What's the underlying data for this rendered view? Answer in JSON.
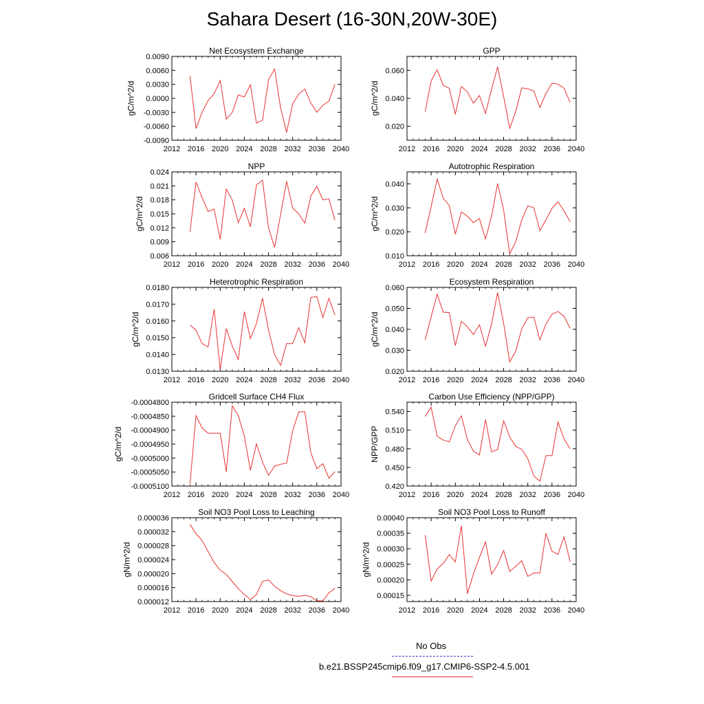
{
  "figure": {
    "title": "Sahara Desert (16-30N,20W-30E)"
  },
  "legend": {
    "obs_label": "No Obs",
    "obs_color": "#3333cc",
    "model_label": "b.e21.BSSP245cmip6.f09_g17.CMIP6-SSP2-4.5.001",
    "model_color": "#e83030"
  },
  "chart_data": [
    {
      "type": "line",
      "title": "Net Ecosystem Exchange",
      "ylabel": "gC/m^2/d",
      "xlabel": "",
      "xlim": [
        2012,
        2040
      ],
      "xticks": [
        2012,
        2016,
        2020,
        2024,
        2028,
        2032,
        2036,
        2040
      ],
      "ylim": [
        -0.009,
        0.009
      ],
      "yticks": [
        "-0.0090",
        "-0.0060",
        "-0.0030",
        "0.0000",
        "0.0030",
        "0.0060",
        "0.0090"
      ],
      "x": [
        2015,
        2016,
        2017,
        2018,
        2019,
        2020,
        2021,
        2022,
        2023,
        2024,
        2025,
        2026,
        2027,
        2028,
        2029,
        2030,
        2031,
        2032,
        2033,
        2034,
        2035,
        2036,
        2037,
        2038,
        2039
      ],
      "series": [
        {
          "color": "#e83030",
          "values": [
            0.0048,
            -0.0065,
            -0.003,
            -0.0005,
            0.001,
            0.0038,
            -0.0045,
            -0.003,
            0.0007,
            0.0003,
            0.0029,
            -0.0053,
            -0.0047,
            0.004,
            0.0063,
            -0.002,
            -0.0073,
            -0.0012,
            0.0009,
            0.002,
            -0.001,
            -0.003,
            -0.0015,
            -0.0006,
            0.003
          ]
        }
      ]
    },
    {
      "type": "line",
      "title": "GPP",
      "ylabel": "gC/m^2/d",
      "xlabel": "",
      "xlim": [
        2012,
        2040
      ],
      "xticks": [
        2012,
        2016,
        2020,
        2024,
        2028,
        2032,
        2036,
        2040
      ],
      "ylim": [
        0.01,
        0.07
      ],
      "yticks": [
        "0.020",
        "0.040",
        "0.060"
      ],
      "x": [
        2015,
        2016,
        2017,
        2018,
        2019,
        2020,
        2021,
        2022,
        2023,
        2024,
        2025,
        2026,
        2027,
        2028,
        2029,
        2030,
        2031,
        2032,
        2033,
        2034,
        2035,
        2036,
        2037,
        2038,
        2039
      ],
      "series": [
        {
          "color": "#e83030",
          "values": [
            0.0305,
            0.0525,
            0.0605,
            0.0492,
            0.0472,
            0.0285,
            0.0485,
            0.0445,
            0.0365,
            0.042,
            0.0292,
            0.0465,
            0.0625,
            0.0412,
            0.0185,
            0.0305,
            0.0475,
            0.0468,
            0.0452,
            0.0335,
            0.0435,
            0.0508,
            0.0502,
            0.0472,
            0.0372
          ]
        }
      ]
    },
    {
      "type": "line",
      "title": "NPP",
      "ylabel": "gC/m^2/d",
      "xlabel": "",
      "xlim": [
        2012,
        2040
      ],
      "xticks": [
        2012,
        2016,
        2020,
        2024,
        2028,
        2032,
        2036,
        2040
      ],
      "ylim": [
        0.006,
        0.024
      ],
      "yticks": [
        "0.006",
        "0.009",
        "0.012",
        "0.015",
        "0.018",
        "0.021",
        "0.024"
      ],
      "x": [
        2015,
        2016,
        2017,
        2018,
        2019,
        2020,
        2021,
        2022,
        2023,
        2024,
        2025,
        2026,
        2027,
        2028,
        2029,
        2030,
        2031,
        2032,
        2033,
        2034,
        2035,
        2036,
        2037,
        2038,
        2039
      ],
      "series": [
        {
          "color": "#e83030",
          "values": [
            0.0112,
            0.0218,
            0.0185,
            0.0155,
            0.016,
            0.0095,
            0.0203,
            0.0179,
            0.0131,
            0.0162,
            0.0122,
            0.0212,
            0.0222,
            0.012,
            0.0078,
            0.0148,
            0.022,
            0.0162,
            0.015,
            0.013,
            0.0188,
            0.0209,
            0.018,
            0.0182,
            0.0136
          ]
        }
      ]
    },
    {
      "type": "line",
      "title": "Autotrophic Respiration",
      "ylabel": "gC/m^2/d",
      "xlabel": "",
      "xlim": [
        2012,
        2040
      ],
      "xticks": [
        2012,
        2016,
        2020,
        2024,
        2028,
        2032,
        2036,
        2040
      ],
      "ylim": [
        0.01,
        0.045
      ],
      "yticks": [
        "0.010",
        "0.020",
        "0.030",
        "0.040"
      ],
      "x": [
        2015,
        2016,
        2017,
        2018,
        2019,
        2020,
        2021,
        2022,
        2023,
        2024,
        2025,
        2026,
        2027,
        2028,
        2029,
        2030,
        2031,
        2032,
        2033,
        2034,
        2035,
        2036,
        2037,
        2038,
        2039
      ],
      "series": [
        {
          "color": "#e83030",
          "values": [
            0.0195,
            0.0305,
            0.042,
            0.034,
            0.031,
            0.019,
            0.0283,
            0.0265,
            0.0238,
            0.0255,
            0.017,
            0.0265,
            0.0402,
            0.029,
            0.0108,
            0.0158,
            0.025,
            0.0308,
            0.03,
            0.0205,
            0.025,
            0.0298,
            0.0325,
            0.0288,
            0.0242
          ]
        }
      ]
    },
    {
      "type": "line",
      "title": "Heterotrophic Respiration",
      "ylabel": "gC/m^2/d",
      "xlabel": "",
      "xlim": [
        2012,
        2040
      ],
      "xticks": [
        2012,
        2016,
        2020,
        2024,
        2028,
        2032,
        2036,
        2040
      ],
      "ylim": [
        0.013,
        0.018
      ],
      "yticks": [
        "0.0130",
        "0.0140",
        "0.0150",
        "0.0160",
        "0.0170",
        "0.0180"
      ],
      "x": [
        2015,
        2016,
        2017,
        2018,
        2019,
        2020,
        2021,
        2022,
        2023,
        2024,
        2025,
        2026,
        2027,
        2028,
        2029,
        2030,
        2031,
        2032,
        2033,
        2034,
        2035,
        2036,
        2037,
        2038,
        2039
      ],
      "series": [
        {
          "color": "#e83030",
          "values": [
            0.01575,
            0.01545,
            0.01465,
            0.01445,
            0.0167,
            0.0131,
            0.01555,
            0.0145,
            0.0137,
            0.01655,
            0.01495,
            0.01585,
            0.01735,
            0.01545,
            0.014,
            0.01335,
            0.01465,
            0.01465,
            0.0156,
            0.0147,
            0.0174,
            0.01745,
            0.0162,
            0.01735,
            0.01635
          ]
        }
      ]
    },
    {
      "type": "line",
      "title": "Ecosystem Respiration",
      "ylabel": "gC/m^2/d",
      "xlabel": "",
      "xlim": [
        2012,
        2040
      ],
      "xticks": [
        2012,
        2016,
        2020,
        2024,
        2028,
        2032,
        2036,
        2040
      ],
      "ylim": [
        0.02,
        0.06
      ],
      "yticks": [
        "0.020",
        "0.030",
        "0.040",
        "0.050",
        "0.060"
      ],
      "x": [
        2015,
        2016,
        2017,
        2018,
        2019,
        2020,
        2021,
        2022,
        2023,
        2024,
        2025,
        2026,
        2027,
        2028,
        2029,
        2030,
        2031,
        2032,
        2033,
        2034,
        2035,
        2036,
        2037,
        2038,
        2039
      ],
      "series": [
        {
          "color": "#e83030",
          "values": [
            0.035,
            0.046,
            0.0567,
            0.0482,
            0.048,
            0.0322,
            0.0438,
            0.0412,
            0.0375,
            0.0422,
            0.032,
            0.0425,
            0.0575,
            0.0428,
            0.0245,
            0.0295,
            0.0402,
            0.0455,
            0.0458,
            0.035,
            0.0425,
            0.0472,
            0.0485,
            0.0462,
            0.0405
          ]
        }
      ]
    },
    {
      "type": "line",
      "title": "Gridcell Surface CH4 Flux",
      "ylabel": "gC/m^2/d",
      "xlabel": "",
      "xlim": [
        2012,
        2040
      ],
      "xticks": [
        2012,
        2016,
        2020,
        2024,
        2028,
        2032,
        2036,
        2040
      ],
      "ylim": [
        -0.00051,
        -0.00048
      ],
      "yticks": [
        "-0.0005100",
        "-0.0005050",
        "-0.0005000",
        "-0.0004950",
        "-0.0004900",
        "-0.0004850",
        "-0.0004800"
      ],
      "x": [
        2015,
        2016,
        2017,
        2018,
        2019,
        2020,
        2021,
        2022,
        2023,
        2024,
        2025,
        2026,
        2027,
        2028,
        2029,
        2030,
        2031,
        2032,
        2033,
        2034,
        2035,
        2036,
        2037,
        2038,
        2039
      ],
      "series": [
        {
          "color": "#e83030",
          "values": [
            -0.0005091,
            -0.0004848,
            -0.0004892,
            -0.0004911,
            -0.0004911,
            -0.0004911,
            -0.0005049,
            -0.0004813,
            -0.0004848,
            -0.0004921,
            -0.0005044,
            -0.0004949,
            -0.0005014,
            -0.0005062,
            -0.0005029,
            -0.0005022,
            -0.0005018,
            -0.0004902,
            -0.0004835,
            -0.0004834,
            -0.0004981,
            -0.0005038,
            -0.000502,
            -0.0005072,
            -0.0005048
          ]
        }
      ]
    },
    {
      "type": "line",
      "title": "Carbon Use Efficiency (NPP/GPP)",
      "ylabel": "NPP/GPP",
      "xlabel": "",
      "xlim": [
        2012,
        2040
      ],
      "xticks": [
        2012,
        2016,
        2020,
        2024,
        2028,
        2032,
        2036,
        2040
      ],
      "ylim": [
        0.42,
        0.555
      ],
      "yticks": [
        "0.420",
        "0.450",
        "0.480",
        "0.510",
        "0.540"
      ],
      "x": [
        2015,
        2016,
        2017,
        2018,
        2019,
        2020,
        2021,
        2022,
        2023,
        2024,
        2025,
        2026,
        2027,
        2028,
        2029,
        2030,
        2031,
        2032,
        2033,
        2034,
        2035,
        2036,
        2037,
        2038,
        2039
      ],
      "series": [
        {
          "color": "#e83030",
          "values": [
            0.532,
            0.547,
            0.5,
            0.494,
            0.491,
            0.517,
            0.533,
            0.495,
            0.476,
            0.47,
            0.527,
            0.475,
            0.479,
            0.525,
            0.499,
            0.484,
            0.479,
            0.464,
            0.436,
            0.428,
            0.469,
            0.469,
            0.523,
            0.496,
            0.48
          ]
        }
      ]
    },
    {
      "type": "line",
      "title": "Soil NO3 Pool Loss to Leaching",
      "ylabel": "gN/m^2/d",
      "xlabel": "",
      "xlim": [
        2012,
        2040
      ],
      "xticks": [
        2012,
        2016,
        2020,
        2024,
        2028,
        2032,
        2036,
        2040
      ],
      "ylim": [
        1.2e-05,
        3.6e-05
      ],
      "yticks": [
        "0.000012",
        "0.000016",
        "0.000020",
        "0.000024",
        "0.000028",
        "0.000032",
        "0.000036"
      ],
      "x": [
        2015,
        2016,
        2017,
        2018,
        2019,
        2020,
        2021,
        2022,
        2023,
        2024,
        2025,
        2026,
        2027,
        2028,
        2029,
        2030,
        2031,
        2032,
        2033,
        2034,
        2035,
        2036,
        2037,
        2038,
        2039
      ],
      "series": [
        {
          "color": "#e83030",
          "values": [
            3.41e-05,
            3.14e-05,
            2.95e-05,
            2.63e-05,
            2.32e-05,
            2.1e-05,
            1.98e-05,
            1.77e-05,
            1.57e-05,
            1.4e-05,
            1.26e-05,
            1.4e-05,
            1.78e-05,
            1.82e-05,
            1.64e-05,
            1.51e-05,
            1.42e-05,
            1.37e-05,
            1.35e-05,
            1.38e-05,
            1.34e-05,
            1.22e-05,
            1.22e-05,
            1.45e-05,
            1.58e-05
          ]
        }
      ]
    },
    {
      "type": "line",
      "title": "Soil NO3 Pool Loss to Runoff",
      "ylabel": "gN/m^2/d",
      "xlabel": "",
      "xlim": [
        2012,
        2040
      ],
      "xticks": [
        2012,
        2016,
        2020,
        2024,
        2028,
        2032,
        2036,
        2040
      ],
      "ylim": [
        0.00013,
        0.0004
      ],
      "yticks": [
        "0.00015",
        "0.00020",
        "0.00025",
        "0.00030",
        "0.00035",
        "0.00040"
      ],
      "x": [
        2015,
        2016,
        2017,
        2018,
        2019,
        2020,
        2021,
        2022,
        2023,
        2024,
        2025,
        2026,
        2027,
        2028,
        2029,
        2030,
        2031,
        2032,
        2033,
        2034,
        2035,
        2036,
        2037,
        2038,
        2039
      ],
      "series": [
        {
          "color": "#e83030",
          "values": [
            0.000344,
            0.000196,
            0.000235,
            0.000253,
            0.000281,
            0.000258,
            0.000374,
            0.000155,
            0.000219,
            0.000272,
            0.000322,
            0.000218,
            0.000249,
            0.000294,
            0.000227,
            0.000243,
            0.000262,
            0.000211,
            0.000222,
            0.000222,
            0.00035,
            0.000292,
            0.000282,
            0.000339,
            0.000259
          ]
        }
      ]
    }
  ]
}
